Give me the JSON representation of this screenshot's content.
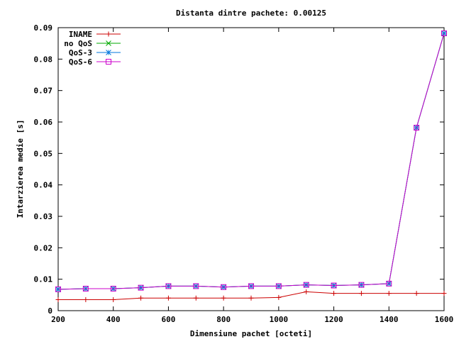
{
  "chart_data": {
    "type": "line",
    "title": "Distanta dintre pachete: 0.00125",
    "xlabel": "Dimensiune pachet [octeti]",
    "ylabel": "Intarzierea medie [s]",
    "xlim": [
      200,
      1600
    ],
    "ylim": [
      0,
      0.09
    ],
    "x_ticks": [
      "200",
      "400",
      "600",
      "800",
      "1000",
      "1200",
      "1400",
      "1600"
    ],
    "y_ticks": [
      "0",
      "0.01",
      "0.02",
      "0.03",
      "0.04",
      "0.05",
      "0.06",
      "0.07",
      "0.08",
      "0.09"
    ],
    "grid": false,
    "legend_position": "top-left",
    "x": [
      200,
      300,
      400,
      500,
      600,
      700,
      800,
      900,
      1000,
      1100,
      1200,
      1300,
      1400,
      1500,
      1600
    ],
    "series": [
      {
        "name": "INAME",
        "color": "#cc0000",
        "marker": "plus",
        "values": [
          0.0035,
          0.0035,
          0.0035,
          0.004,
          0.004,
          0.004,
          0.004,
          0.004,
          0.0042,
          0.006,
          0.0055,
          0.0055,
          0.0055,
          0.0055,
          0.0055
        ]
      },
      {
        "name": "no QoS",
        "color": "#00aa00",
        "marker": "cross",
        "values": [
          0.0068,
          0.007,
          0.007,
          0.0073,
          0.0078,
          0.0078,
          0.0075,
          0.0078,
          0.0078,
          0.0082,
          0.008,
          0.0082,
          0.0086,
          0.0582,
          0.0882
        ]
      },
      {
        "name": "QoS-3",
        "color": "#0077dd",
        "marker": "star",
        "values": [
          0.0068,
          0.007,
          0.007,
          0.0073,
          0.0078,
          0.0078,
          0.0075,
          0.0078,
          0.0078,
          0.0082,
          0.008,
          0.0082,
          0.0086,
          0.0582,
          0.0882
        ]
      },
      {
        "name": "QoS-6",
        "color": "#cc00cc",
        "marker": "square",
        "values": [
          0.0068,
          0.007,
          0.007,
          0.0073,
          0.0078,
          0.0078,
          0.0075,
          0.0078,
          0.0078,
          0.0082,
          0.008,
          0.0082,
          0.0086,
          0.0582,
          0.0882
        ]
      }
    ]
  }
}
